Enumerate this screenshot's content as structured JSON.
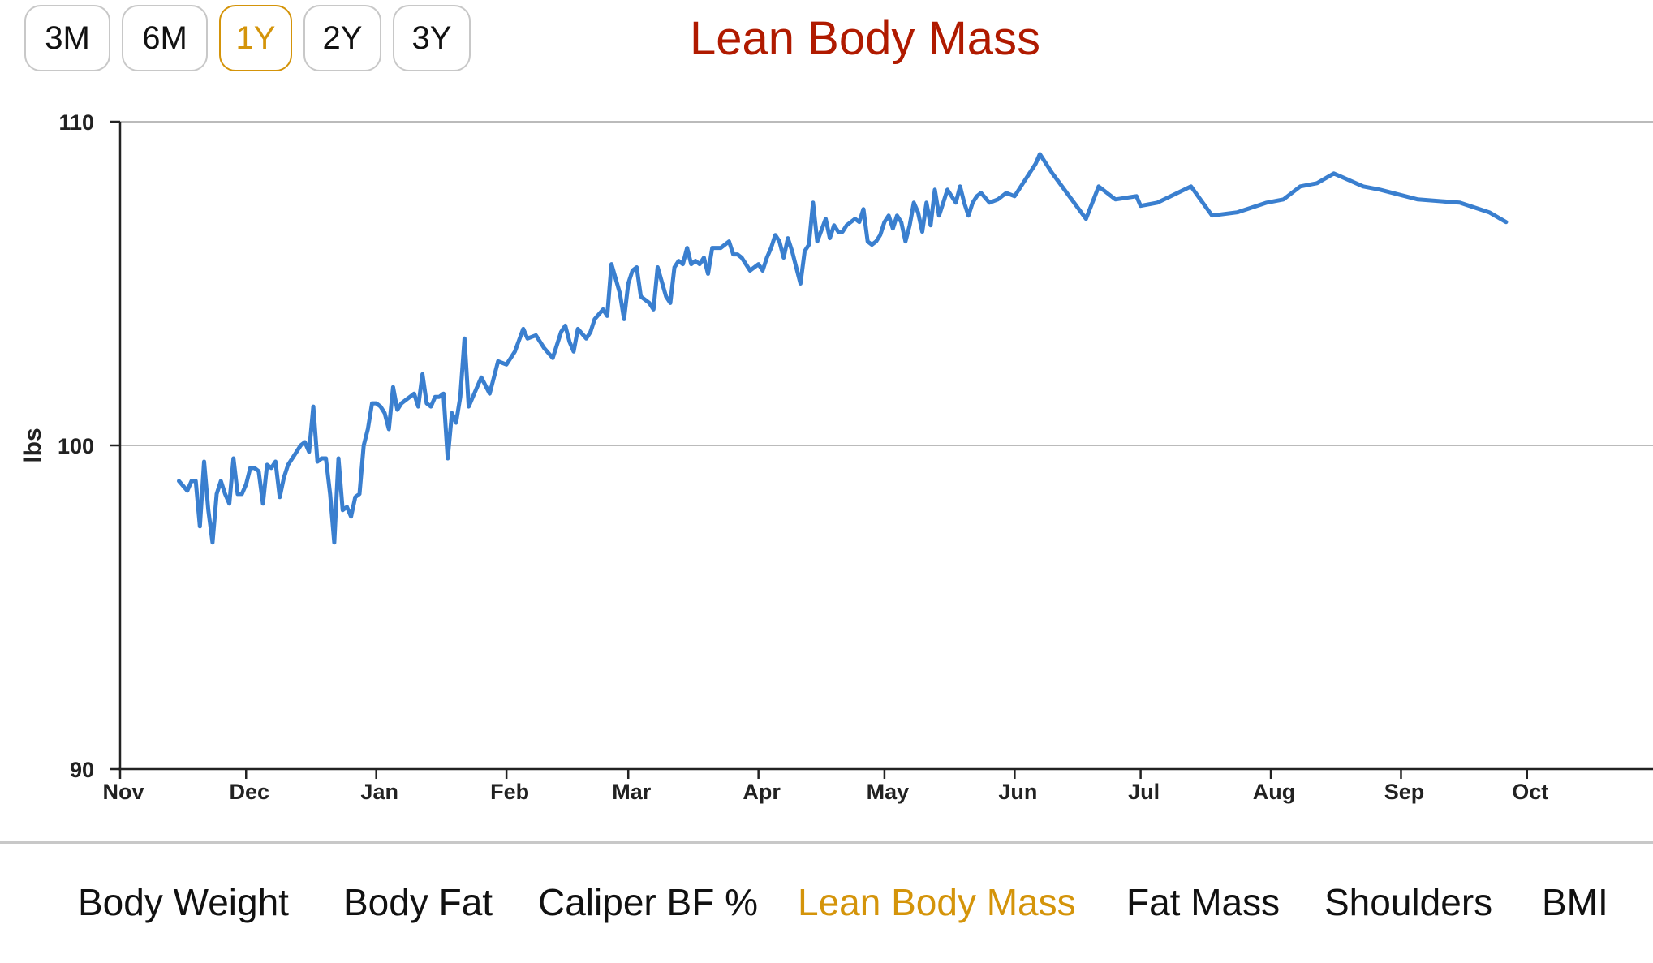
{
  "range_buttons": [
    {
      "label": "3M",
      "active": false
    },
    {
      "label": "6M",
      "active": false
    },
    {
      "label": "1Y",
      "active": true
    },
    {
      "label": "2Y",
      "active": false
    },
    {
      "label": "3Y",
      "active": false
    }
  ],
  "title": "Lean Body Mass",
  "metrics": [
    {
      "label": "Body Weight",
      "active": false
    },
    {
      "label": "Body Fat",
      "active": false
    },
    {
      "label": "Caliper BF %",
      "active": false
    },
    {
      "label": "Lean Body Mass",
      "active": true
    },
    {
      "label": "Fat Mass",
      "active": false
    },
    {
      "label": "Shoulders",
      "active": false
    },
    {
      "label": "BMI",
      "active": false
    }
  ],
  "colors": {
    "line": "#3a7fcf",
    "title": "#b01a00",
    "accent": "#d4940a",
    "grid": "#bbbbbb",
    "axis": "#222222"
  },
  "chart_data": {
    "type": "line",
    "title": "Lean Body Mass",
    "xlabel": "",
    "ylabel": "lbs",
    "ylim": [
      90,
      110
    ],
    "yticks": [
      90,
      100,
      110
    ],
    "grid": true,
    "xlim": [
      "2023-11-01",
      "2024-10-31"
    ],
    "xticks": [
      {
        "label": "Nov",
        "date": "2023-11-01"
      },
      {
        "label": "Dec",
        "date": "2023-12-01"
      },
      {
        "label": "Jan",
        "date": "2024-01-01"
      },
      {
        "label": "Feb",
        "date": "2024-02-01"
      },
      {
        "label": "Mar",
        "date": "2024-03-01"
      },
      {
        "label": "Apr",
        "date": "2024-04-01"
      },
      {
        "label": "May",
        "date": "2024-05-01"
      },
      {
        "label": "Jun",
        "date": "2024-06-01"
      },
      {
        "label": "Jul",
        "date": "2024-07-01"
      },
      {
        "label": "Aug",
        "date": "2024-08-01"
      },
      {
        "label": "Sep",
        "date": "2024-09-01"
      },
      {
        "label": "Oct",
        "date": "2024-10-01"
      }
    ],
    "series": [
      {
        "x": [
          "2023-11-15",
          "2023-11-17",
          "2023-11-18",
          "2023-11-19",
          "2023-11-20",
          "2023-11-21",
          "2023-11-22",
          "2023-11-23",
          "2023-11-24",
          "2023-11-25",
          "2023-11-26",
          "2023-11-27",
          "2023-11-28",
          "2023-11-29",
          "2023-11-30",
          "2023-12-01",
          "2023-12-02",
          "2023-12-03",
          "2023-12-04",
          "2023-12-05",
          "2023-12-06",
          "2023-12-07",
          "2023-12-08",
          "2023-12-09",
          "2023-12-10",
          "2023-12-11",
          "2023-12-12",
          "2023-12-13",
          "2023-12-14",
          "2023-12-15",
          "2023-12-16",
          "2023-12-17",
          "2023-12-18",
          "2023-12-19",
          "2023-12-20",
          "2023-12-21",
          "2023-12-22",
          "2023-12-23",
          "2023-12-24",
          "2023-12-25",
          "2023-12-26",
          "2023-12-27",
          "2023-12-28",
          "2023-12-29",
          "2023-12-30",
          "2023-12-31",
          "2024-01-01",
          "2024-01-02",
          "2024-01-03",
          "2024-01-04",
          "2024-01-05",
          "2024-01-06",
          "2024-01-07",
          "2024-01-08",
          "2024-01-09",
          "2024-01-10",
          "2024-01-11",
          "2024-01-12",
          "2024-01-13",
          "2024-01-14",
          "2024-01-15",
          "2024-01-16",
          "2024-01-17",
          "2024-01-18",
          "2024-01-19",
          "2024-01-20",
          "2024-01-21",
          "2024-01-22",
          "2024-01-23",
          "2024-01-24",
          "2024-01-26",
          "2024-01-28",
          "2024-01-30",
          "2024-02-01",
          "2024-02-03",
          "2024-02-05",
          "2024-02-06",
          "2024-02-08",
          "2024-02-10",
          "2024-02-12",
          "2024-02-14",
          "2024-02-15",
          "2024-02-16",
          "2024-02-17",
          "2024-02-18",
          "2024-02-20",
          "2024-02-21",
          "2024-02-22",
          "2024-02-24",
          "2024-02-25",
          "2024-02-26",
          "2024-02-28",
          "2024-02-29",
          "2024-03-01",
          "2024-03-02",
          "2024-03-03",
          "2024-03-04",
          "2024-03-06",
          "2024-03-07",
          "2024-03-08",
          "2024-03-10",
          "2024-03-11",
          "2024-03-12",
          "2024-03-13",
          "2024-03-14",
          "2024-03-15",
          "2024-03-16",
          "2024-03-17",
          "2024-03-18",
          "2024-03-19",
          "2024-03-20",
          "2024-03-21",
          "2024-03-23",
          "2024-03-25",
          "2024-03-26",
          "2024-03-27",
          "2024-03-28",
          "2024-03-30",
          "2024-04-01",
          "2024-04-02",
          "2024-04-03",
          "2024-04-04",
          "2024-04-05",
          "2024-04-06",
          "2024-04-07",
          "2024-04-08",
          "2024-04-09",
          "2024-04-10",
          "2024-04-11",
          "2024-04-12",
          "2024-04-13",
          "2024-04-14",
          "2024-04-15",
          "2024-04-17",
          "2024-04-18",
          "2024-04-19",
          "2024-04-20",
          "2024-04-21",
          "2024-04-22",
          "2024-04-23",
          "2024-04-24",
          "2024-04-25",
          "2024-04-26",
          "2024-04-27",
          "2024-04-28",
          "2024-04-29",
          "2024-04-30",
          "2024-05-01",
          "2024-05-02",
          "2024-05-03",
          "2024-05-04",
          "2024-05-05",
          "2024-05-06",
          "2024-05-07",
          "2024-05-08",
          "2024-05-09",
          "2024-05-10",
          "2024-05-11",
          "2024-05-12",
          "2024-05-13",
          "2024-05-14",
          "2024-05-15",
          "2024-05-16",
          "2024-05-17",
          "2024-05-18",
          "2024-05-19",
          "2024-05-20",
          "2024-05-21",
          "2024-05-22",
          "2024-05-23",
          "2024-05-24",
          "2024-05-26",
          "2024-05-28",
          "2024-05-29",
          "2024-05-30",
          "2024-06-01",
          "2024-06-06",
          "2024-06-07",
          "2024-06-10",
          "2024-06-18",
          "2024-06-21",
          "2024-06-25",
          "2024-06-30",
          "2024-07-01",
          "2024-07-05",
          "2024-07-13",
          "2024-07-18",
          "2024-07-24",
          "2024-07-31",
          "2024-08-04",
          "2024-08-08",
          "2024-08-12",
          "2024-08-16",
          "2024-08-23",
          "2024-08-27",
          "2024-08-30",
          "2024-09-02",
          "2024-09-05",
          "2024-09-15",
          "2024-09-22",
          "2024-09-26"
        ],
        "y": [
          98.9,
          98.6,
          98.9,
          98.9,
          97.5,
          99.5,
          98.0,
          97.0,
          98.5,
          98.9,
          98.5,
          98.2,
          99.6,
          98.5,
          98.5,
          98.8,
          99.3,
          99.3,
          99.2,
          98.2,
          99.4,
          99.3,
          99.5,
          98.4,
          99.0,
          99.4,
          99.6,
          99.8,
          100.0,
          100.1,
          99.8,
          101.2,
          99.5,
          99.6,
          99.6,
          98.5,
          97.0,
          99.6,
          98.0,
          98.1,
          97.8,
          98.4,
          98.5,
          100.0,
          100.5,
          101.3,
          101.3,
          101.2,
          101.0,
          100.5,
          101.8,
          101.1,
          101.3,
          101.4,
          101.5,
          101.6,
          101.2,
          102.2,
          101.3,
          101.2,
          101.5,
          101.5,
          101.6,
          99.6,
          101.0,
          100.7,
          101.5,
          103.3,
          101.2,
          101.5,
          102.1,
          101.6,
          102.6,
          102.5,
          102.9,
          103.6,
          103.3,
          103.4,
          103.0,
          102.7,
          103.5,
          103.7,
          103.2,
          102.9,
          103.6,
          103.3,
          103.5,
          103.9,
          104.2,
          104.0,
          105.6,
          104.7,
          103.9,
          105.0,
          105.4,
          105.5,
          104.6,
          104.4,
          104.2,
          105.5,
          104.6,
          104.4,
          105.5,
          105.7,
          105.6,
          106.1,
          105.6,
          105.7,
          105.6,
          105.8,
          105.3,
          106.1,
          106.1,
          106.3,
          105.9,
          105.9,
          105.8,
          105.4,
          105.6,
          105.4,
          105.8,
          106.1,
          106.5,
          106.3,
          105.8,
          106.4,
          106.0,
          105.5,
          105.0,
          106.0,
          106.2,
          107.5,
          106.3,
          107.0,
          106.4,
          106.8,
          106.6,
          106.6,
          106.8,
          106.9,
          107.0,
          106.9,
          107.3,
          106.3,
          106.2,
          106.3,
          106.5,
          106.9,
          107.1,
          106.7,
          107.1,
          106.9,
          106.3,
          106.8,
          107.5,
          107.2,
          106.6,
          107.5,
          106.8,
          107.9,
          107.1,
          107.5,
          107.9,
          107.7,
          107.5,
          108.0,
          107.5,
          107.1,
          107.5,
          107.7,
          107.8,
          107.5,
          107.6,
          107.7,
          107.8,
          107.7,
          108.7,
          109.0,
          108.4,
          107.0,
          108.0,
          107.6,
          107.7,
          107.4,
          107.5,
          108.0,
          107.1,
          107.2,
          107.5,
          107.6,
          108.0,
          108.1,
          108.4,
          108.0,
          107.9,
          107.8,
          107.7,
          107.6,
          107.5,
          107.2,
          106.9
        ]
      }
    ]
  }
}
